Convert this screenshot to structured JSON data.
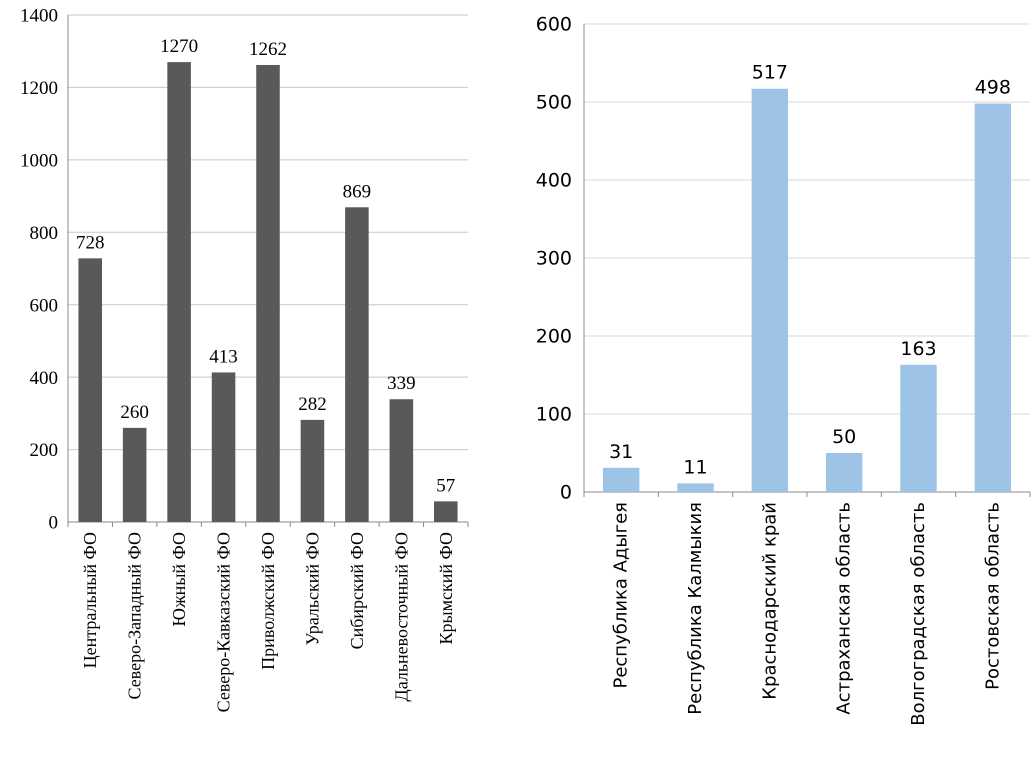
{
  "chart_data": [
    {
      "type": "bar",
      "title": "",
      "xlabel": "",
      "ylabel": "",
      "categories": [
        "Центральный ФО",
        "Северо-Западный ФО",
        "Южный ФО",
        "Северо-Кавказский ФО",
        "Приволжский ФО",
        "Уральский ФО",
        "Сибирский ФО",
        "Дальневосточный ФО",
        "Крымский ФО"
      ],
      "values": [
        728,
        260,
        1270,
        413,
        1262,
        282,
        869,
        339,
        57
      ],
      "data_labels": [
        "728",
        "260",
        "1270",
        "413",
        "1262",
        "282",
        "869",
        "339",
        "57"
      ],
      "ylim": [
        0,
        1400
      ],
      "yticks": [
        0,
        200,
        400,
        600,
        800,
        1000,
        1200,
        1400
      ],
      "grid": true,
      "bar_color": "#595959"
    },
    {
      "type": "bar",
      "title": "",
      "xlabel": "",
      "ylabel": "",
      "categories": [
        "Республика Адыгея",
        "Республика Калмыкия",
        "Краснодарский край",
        "Астраханская область",
        "Волгоградская область",
        "Ростовская область"
      ],
      "values": [
        31,
        11,
        517,
        50,
        163,
        498
      ],
      "data_labels": [
        "31",
        "11",
        "517",
        "50",
        "163",
        "498"
      ],
      "ylim": [
        0,
        600
      ],
      "yticks": [
        0,
        100,
        200,
        300,
        400,
        500,
        600
      ],
      "grid": true,
      "bar_color": "#9DC3E6"
    }
  ]
}
